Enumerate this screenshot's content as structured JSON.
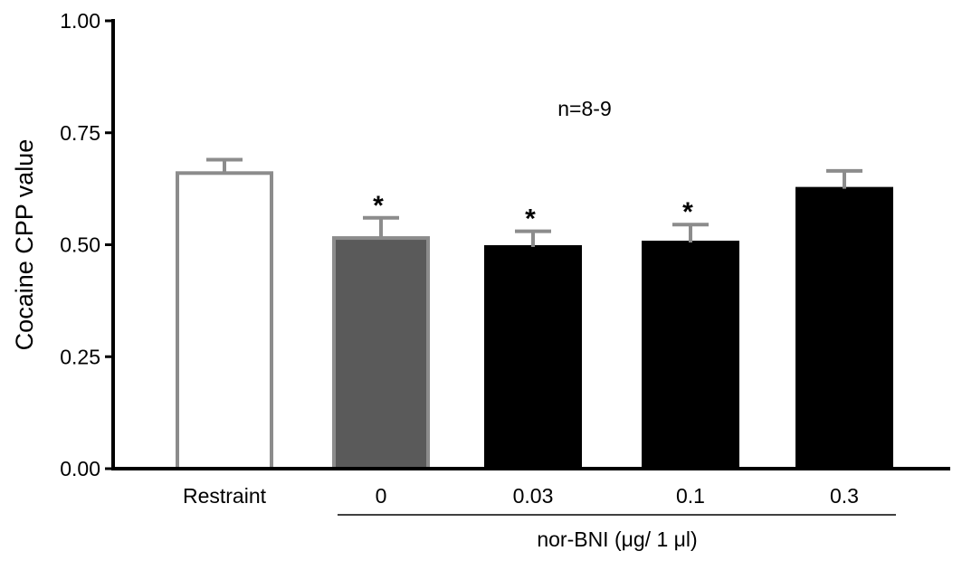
{
  "chart_data": {
    "type": "bar",
    "title": "",
    "xlabel": "",
    "ylabel": "Cocaine CPP value",
    "ylim": [
      0,
      1.0
    ],
    "yticks": [
      "0.00",
      "0.25",
      "0.50",
      "0.75",
      "1.00"
    ],
    "ytick_values": [
      0,
      0.25,
      0.5,
      0.75,
      1.0
    ],
    "categories": [
      "Restraint",
      "0",
      "0.03",
      "0.1",
      "0.3"
    ],
    "values": [
      0.66,
      0.515,
      0.495,
      0.505,
      0.625
    ],
    "errors": [
      0.03,
      0.045,
      0.035,
      0.04,
      0.04
    ],
    "significance": [
      "",
      "*",
      "*",
      "*",
      ""
    ],
    "bar_fills": [
      "#ffffff",
      "#5a5a5a",
      "#000000",
      "#000000",
      "#000000"
    ],
    "bar_strokes": [
      "#8c8c8c",
      "#8c8c8c",
      "#000000",
      "#000000",
      "#000000"
    ],
    "error_color": "#8c8c8c",
    "annotation": "n=8-9",
    "group_label": "nor-BNI  (μg/ 1 μl)",
    "grid": false,
    "legend": "none"
  }
}
